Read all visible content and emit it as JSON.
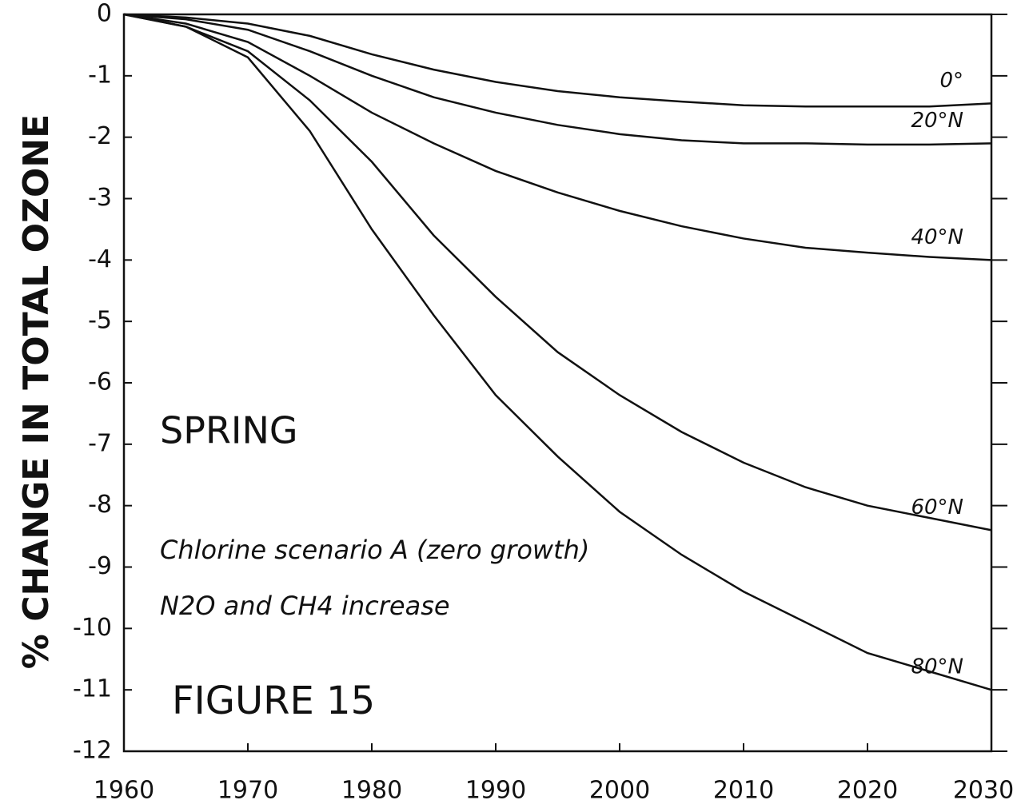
{
  "chart_data": {
    "type": "line",
    "y_label": "% CHANGE IN TOTAL OZONE",
    "annotations": [
      "SPRING",
      "Chlorine scenario A (zero growth)",
      "N2O and CH4 increase",
      "FIGURE 15"
    ],
    "x": [
      1960,
      1965,
      1970,
      1975,
      1980,
      1985,
      1990,
      1995,
      2000,
      2005,
      2010,
      2015,
      2020,
      2025,
      2030
    ],
    "series": [
      {
        "name": "0°",
        "color": "#111111",
        "values": [
          0,
          -0.05,
          -0.15,
          -0.35,
          -0.65,
          -0.9,
          -1.1,
          -1.25,
          -1.35,
          -1.42,
          -1.48,
          -1.5,
          -1.5,
          -1.5,
          -1.45
        ]
      },
      {
        "name": "20°N",
        "color": "#111111",
        "values": [
          0,
          -0.08,
          -0.25,
          -0.6,
          -1.0,
          -1.35,
          -1.6,
          -1.8,
          -1.95,
          -2.05,
          -2.1,
          -2.1,
          -2.12,
          -2.12,
          -2.1
        ]
      },
      {
        "name": "40°N",
        "color": "#111111",
        "values": [
          0,
          -0.15,
          -0.45,
          -1.0,
          -1.6,
          -2.1,
          -2.55,
          -2.9,
          -3.2,
          -3.45,
          -3.65,
          -3.8,
          -3.88,
          -3.95,
          -4.0
        ]
      },
      {
        "name": "60°N",
        "color": "#111111",
        "values": [
          0,
          -0.2,
          -0.6,
          -1.4,
          -2.4,
          -3.6,
          -4.6,
          -5.5,
          -6.2,
          -6.8,
          -7.3,
          -7.7,
          -8.0,
          -8.2,
          -8.4
        ]
      },
      {
        "name": "80°N",
        "color": "#111111",
        "values": [
          0,
          -0.2,
          -0.7,
          -1.9,
          -3.5,
          -4.9,
          -6.2,
          -7.2,
          -8.1,
          -8.8,
          -9.4,
          -9.9,
          -10.4,
          -10.7,
          -11.0
        ]
      }
    ],
    "xlim": [
      1960,
      2030
    ],
    "xticks": [
      1960,
      1970,
      1980,
      1990,
      2000,
      2010,
      2020,
      2030
    ],
    "ylim": [
      -12,
      0
    ],
    "yticks": [
      0,
      -1,
      -2,
      -3,
      -4,
      -5,
      -6,
      -7,
      -8,
      -9,
      -10,
      -11,
      -12
    ]
  }
}
